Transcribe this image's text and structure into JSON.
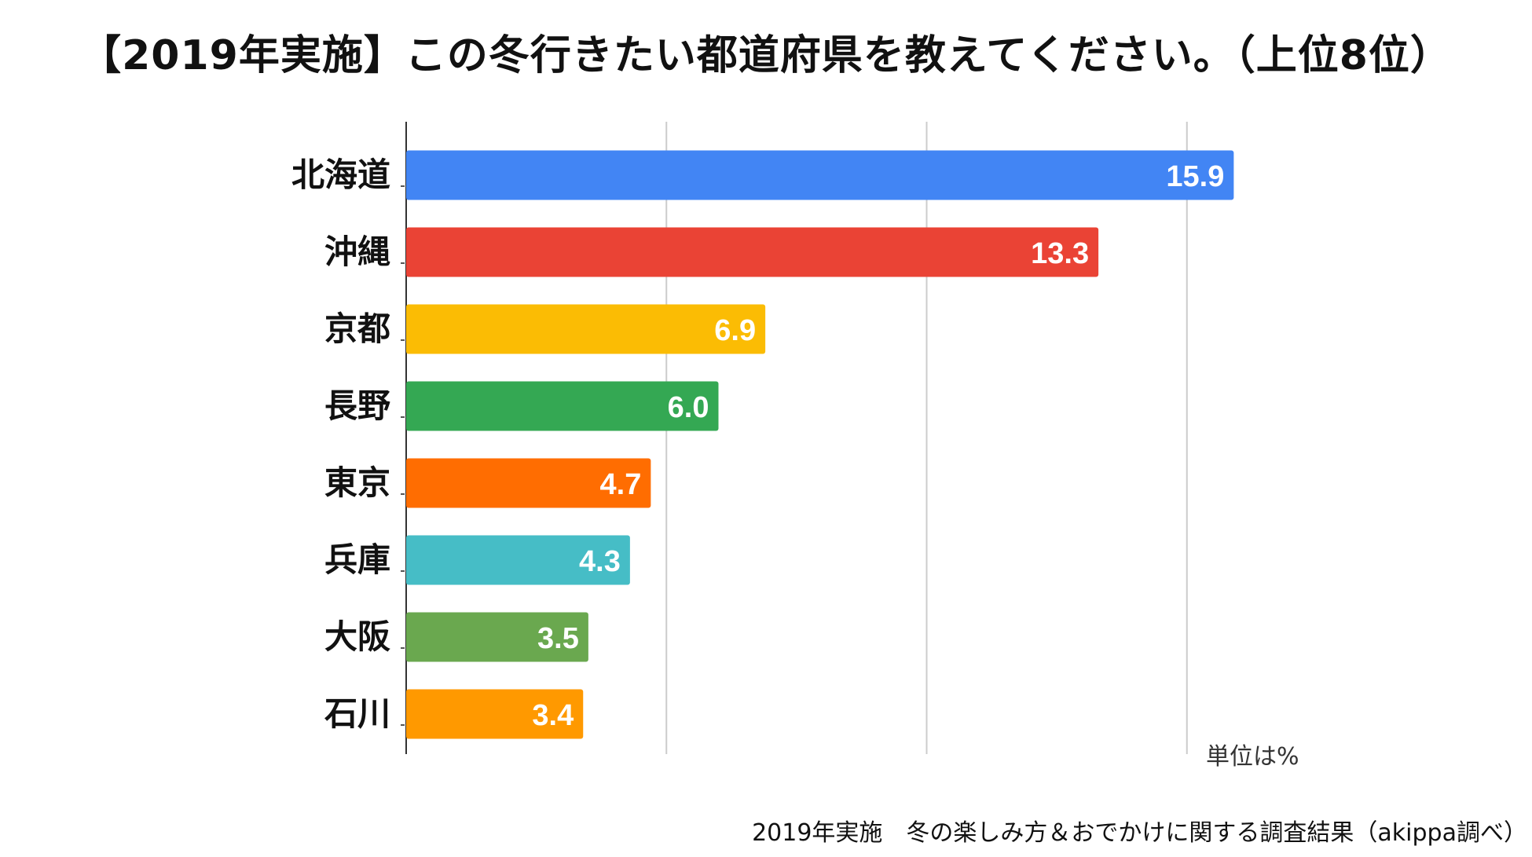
{
  "title": "【2019年実施】この冬行きたい都道府県を教えてください。（上位8位）",
  "unit_note": "単位は%",
  "source": "2019年実施　冬の楽しみ方＆おでかけに関する調査結果（akippa調べ）",
  "chart_data": {
    "type": "bar",
    "orientation": "horizontal",
    "title": "【2019年実施】この冬行きたい都道府県を教えてください。（上位8位）",
    "categories": [
      "北海道",
      "沖縄",
      "京都",
      "長野",
      "東京",
      "兵庫",
      "大阪",
      "石川"
    ],
    "values": [
      15.9,
      13.3,
      6.9,
      6.0,
      4.7,
      4.3,
      3.5,
      3.4
    ],
    "value_labels": [
      "15.9",
      "13.3",
      "6.9",
      "6.0",
      "4.7",
      "4.3",
      "3.5",
      "3.4"
    ],
    "colors": [
      "#4285f4",
      "#ea4335",
      "#fbbc04",
      "#34a853",
      "#ff6d01",
      "#46bdc6",
      "#6aa84f",
      "#ff9900"
    ],
    "xlim": [
      0,
      20
    ],
    "gridlines": [
      0,
      5,
      10,
      15
    ],
    "grid": true,
    "xlabel": "",
    "ylabel": "",
    "unit": "%"
  }
}
